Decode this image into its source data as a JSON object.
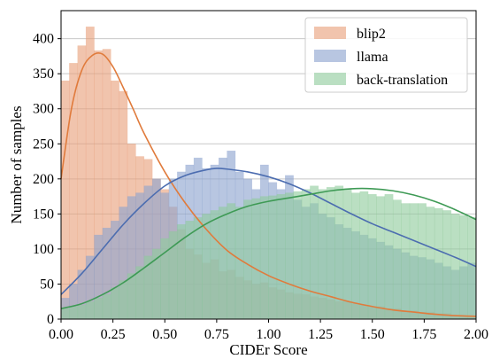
{
  "chart_data": {
    "type": "histogram",
    "title": "",
    "xlabel": "CIDEr Score",
    "ylabel": "Number of samples",
    "xlim": [
      0,
      2
    ],
    "ylim": [
      0,
      440
    ],
    "xticks": [
      "0.00",
      "0.25",
      "0.50",
      "0.75",
      "1.00",
      "1.25",
      "1.50",
      "1.75",
      "2.00"
    ],
    "yticks": [
      "0",
      "50",
      "100",
      "150",
      "200",
      "250",
      "300",
      "350",
      "400"
    ],
    "grid": "horizontal",
    "legend_position": "top-right",
    "bin_width": 0.04,
    "bin_start": 0.0,
    "series": [
      {
        "name": "blip2",
        "color": "#e8a07a",
        "curve_color": "#e07b3c",
        "values": [
          340,
          365,
          390,
          417,
          383,
          385,
          340,
          325,
          250,
          232,
          228,
          200,
          185,
          160,
          128,
          100,
          92,
          80,
          85,
          68,
          70,
          60,
          55,
          50,
          52,
          45,
          42,
          38,
          36,
          35,
          32,
          30,
          28,
          25,
          25,
          22,
          20,
          18,
          18,
          15,
          15,
          12,
          12,
          10,
          10,
          8,
          8,
          5,
          5,
          5
        ],
        "kde": [
          [
            0.0,
            200
          ],
          [
            0.05,
            300
          ],
          [
            0.1,
            355
          ],
          [
            0.15,
            376
          ],
          [
            0.2,
            378
          ],
          [
            0.25,
            360
          ],
          [
            0.3,
            330
          ],
          [
            0.35,
            298
          ],
          [
            0.4,
            265
          ],
          [
            0.5,
            210
          ],
          [
            0.6,
            165
          ],
          [
            0.7,
            128
          ],
          [
            0.8,
            98
          ],
          [
            0.9,
            78
          ],
          [
            1.0,
            62
          ],
          [
            1.1,
            50
          ],
          [
            1.2,
            40
          ],
          [
            1.3,
            32
          ],
          [
            1.4,
            24
          ],
          [
            1.5,
            18
          ],
          [
            1.6,
            13
          ],
          [
            1.7,
            10
          ],
          [
            1.8,
            7
          ],
          [
            1.9,
            5
          ],
          [
            2.0,
            4
          ]
        ]
      },
      {
        "name": "llama",
        "color": "#8ca3cf",
        "curve_color": "#4c6db0",
        "values": [
          30,
          50,
          70,
          90,
          120,
          130,
          140,
          160,
          175,
          180,
          190,
          200,
          180,
          200,
          210,
          220,
          230,
          215,
          220,
          230,
          240,
          210,
          200,
          185,
          220,
          195,
          185,
          205,
          170,
          160,
          165,
          150,
          145,
          135,
          130,
          125,
          120,
          115,
          110,
          105,
          100,
          95,
          90,
          88,
          85,
          80,
          75,
          70,
          75,
          80
        ],
        "kde": [
          [
            0.0,
            35
          ],
          [
            0.1,
            65
          ],
          [
            0.2,
            100
          ],
          [
            0.3,
            135
          ],
          [
            0.4,
            165
          ],
          [
            0.5,
            190
          ],
          [
            0.6,
            205
          ],
          [
            0.7,
            213
          ],
          [
            0.75,
            215
          ],
          [
            0.8,
            214
          ],
          [
            0.9,
            210
          ],
          [
            1.0,
            203
          ],
          [
            1.1,
            193
          ],
          [
            1.2,
            180
          ],
          [
            1.3,
            165
          ],
          [
            1.4,
            150
          ],
          [
            1.5,
            136
          ],
          [
            1.6,
            124
          ],
          [
            1.7,
            112
          ],
          [
            1.8,
            100
          ],
          [
            1.9,
            88
          ],
          [
            2.0,
            75
          ]
        ]
      },
      {
        "name": "back-translation",
        "color": "#8fcc9c",
        "curve_color": "#3e9a55",
        "values": [
          15,
          18,
          20,
          25,
          30,
          35,
          45,
          55,
          65,
          75,
          90,
          100,
          115,
          125,
          135,
          140,
          145,
          150,
          155,
          160,
          165,
          160,
          170,
          172,
          175,
          176,
          178,
          180,
          182,
          185,
          190,
          185,
          188,
          190,
          185,
          180,
          182,
          178,
          175,
          178,
          170,
          165,
          165,
          165,
          160,
          158,
          155,
          150,
          148,
          145
        ],
        "kde": [
          [
            0.0,
            15
          ],
          [
            0.1,
            22
          ],
          [
            0.2,
            35
          ],
          [
            0.3,
            52
          ],
          [
            0.4,
            73
          ],
          [
            0.5,
            95
          ],
          [
            0.6,
            117
          ],
          [
            0.7,
            136
          ],
          [
            0.8,
            150
          ],
          [
            0.9,
            161
          ],
          [
            1.0,
            168
          ],
          [
            1.1,
            173
          ],
          [
            1.2,
            178
          ],
          [
            1.3,
            183
          ],
          [
            1.4,
            186
          ],
          [
            1.5,
            186
          ],
          [
            1.6,
            183
          ],
          [
            1.7,
            177
          ],
          [
            1.8,
            168
          ],
          [
            1.9,
            156
          ],
          [
            2.0,
            142
          ]
        ]
      }
    ]
  }
}
